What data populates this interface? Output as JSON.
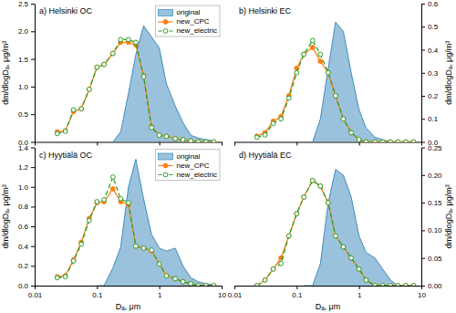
{
  "chart_data": [
    {
      "type": "line",
      "title": "a) Helsinki OC",
      "y_label": "dm/dlogDₐ, μg/m³",
      "log": "x",
      "xlim": [
        0.01,
        10
      ],
      "xticks": [
        0.01,
        0.1,
        1,
        10
      ],
      "ylim": [
        0.0,
        2.5
      ],
      "yticks": [
        {
          "value": 0.0,
          "label": "0.0"
        },
        0.5,
        {
          "value": 1.0,
          "label": "1.0"
        },
        1.5,
        {
          "value": 2.0,
          "label": "2.0"
        },
        2.5
      ],
      "tick_labels": "y",
      "legend": "upper right",
      "series": [
        {
          "name": "original",
          "type": "area",
          "x": [
            0.18,
            0.24,
            0.32,
            0.42,
            0.56,
            0.75,
            1.0,
            1.3,
            1.8,
            2.4,
            3.2,
            4.2,
            5.6,
            7.5
          ],
          "values": [
            0.0,
            0.18,
            0.88,
            1.58,
            2.1,
            1.9,
            1.7,
            1.05,
            0.65,
            0.35,
            0.12,
            0.07,
            0.04,
            0.02
          ]
        },
        {
          "name": "new_CPC",
          "type": "line",
          "marker": "circle",
          "line_style": "solid",
          "x": [
            0.023,
            0.031,
            0.042,
            0.056,
            0.075,
            0.1,
            0.13,
            0.18,
            0.24,
            0.32,
            0.42,
            0.56,
            0.75,
            1.0,
            1.3,
            1.8,
            2.4,
            3.2,
            4.2,
            5.6,
            7.5
          ],
          "values": [
            0.18,
            0.2,
            0.55,
            0.6,
            0.95,
            1.35,
            1.4,
            1.6,
            1.8,
            1.8,
            1.75,
            1.2,
            0.28,
            0.12,
            0.1,
            0.06,
            0.04,
            0.02,
            0.0,
            0.0,
            0.0
          ]
        },
        {
          "name": "new_electric",
          "type": "line",
          "marker": "open-circle",
          "line_style": "dashed",
          "x": [
            0.023,
            0.031,
            0.042,
            0.056,
            0.075,
            0.1,
            0.13,
            0.18,
            0.24,
            0.32,
            0.42,
            0.56,
            0.75,
            1.0,
            1.3,
            1.8,
            2.4,
            3.2,
            4.2,
            5.6,
            7.5
          ],
          "values": [
            0.15,
            0.19,
            0.58,
            0.6,
            0.95,
            1.35,
            1.4,
            1.6,
            1.85,
            1.85,
            1.8,
            1.18,
            0.26,
            0.12,
            0.1,
            0.06,
            0.04,
            0.02,
            0.0,
            0.0,
            0.0
          ]
        }
      ]
    },
    {
      "type": "line",
      "title": "b) Helsinki EC",
      "y_label": "dm/dlogDₐ, μg/m³",
      "log": "x",
      "xlim": [
        0.01,
        10
      ],
      "xticks": [
        0.01,
        0.1,
        1,
        10
      ],
      "ylim": [
        0.0,
        0.6
      ],
      "yticks": [
        {
          "value": 0.0,
          "label": "0.0"
        },
        0.1,
        0.2,
        0.3,
        0.4,
        0.5,
        0.6
      ],
      "tick_labels": "y",
      "series": [
        {
          "name": "original",
          "type": "area",
          "x": [
            0.18,
            0.24,
            0.32,
            0.42,
            0.56,
            0.75,
            1.0,
            1.3,
            1.8,
            2.4,
            3.2,
            4.2,
            5.6,
            7.5
          ],
          "values": [
            0.0,
            0.1,
            0.32,
            0.52,
            0.48,
            0.3,
            0.14,
            0.06,
            0.02,
            0.01,
            0.0,
            0.0,
            0.0,
            0.0
          ]
        },
        {
          "name": "new_CPC",
          "type": "line",
          "marker": "circle",
          "line_style": "solid",
          "x": [
            0.023,
            0.031,
            0.042,
            0.056,
            0.075,
            0.1,
            0.13,
            0.18,
            0.24,
            0.32,
            0.42,
            0.56,
            0.75,
            1.0,
            1.3,
            1.8,
            2.4,
            3.2,
            4.2,
            5.6,
            7.5
          ],
          "values": [
            0.025,
            0.04,
            0.09,
            0.11,
            0.2,
            0.32,
            0.38,
            0.41,
            0.35,
            0.3,
            0.2,
            0.1,
            0.04,
            0.01,
            0.0,
            0.0,
            0.0,
            0.0,
            0.0,
            0.0,
            0.0
          ]
        },
        {
          "name": "new_electric",
          "type": "line",
          "marker": "open-circle",
          "line_style": "dashed",
          "x": [
            0.023,
            0.031,
            0.042,
            0.056,
            0.075,
            0.1,
            0.13,
            0.18,
            0.24,
            0.32,
            0.42,
            0.56,
            0.75,
            1.0,
            1.3,
            1.8,
            2.4,
            3.2,
            4.2,
            5.6,
            7.5
          ],
          "values": [
            0.02,
            0.03,
            0.08,
            0.1,
            0.19,
            0.3,
            0.38,
            0.44,
            0.38,
            0.3,
            0.2,
            0.1,
            0.04,
            0.01,
            0.0,
            0.0,
            0.0,
            0.0,
            0.0,
            0.0,
            0.0
          ]
        }
      ]
    },
    {
      "type": "line",
      "title": "c) Hyytiälä OC",
      "x_label": "Dₐ, μm",
      "y_label": "dm/dlogDₐ, μg/m³",
      "log": "x",
      "xlim": [
        0.01,
        10
      ],
      "xticks": [
        0.01,
        0.1,
        1,
        10
      ],
      "ylim": [
        0.0,
        1.4
      ],
      "yticks": [
        {
          "value": 0.0,
          "label": "0.0"
        },
        0.2,
        0.4,
        0.6,
        0.8,
        {
          "value": 1.0,
          "label": "1.0"
        },
        1.2,
        1.4
      ],
      "legend": "upper right",
      "series": [
        {
          "name": "original",
          "type": "area",
          "x": [
            0.1,
            0.13,
            0.18,
            0.24,
            0.32,
            0.42,
            0.56,
            0.75,
            1.0,
            1.3,
            1.8,
            2.4,
            3.2,
            4.2,
            5.6,
            7.5
          ],
          "values": [
            0.0,
            0.0,
            0.18,
            0.39,
            1.0,
            1.28,
            0.88,
            0.52,
            0.38,
            0.35,
            0.38,
            0.2,
            0.08,
            0.04,
            0.02,
            0.01
          ]
        },
        {
          "name": "new_CPC",
          "type": "line",
          "marker": "circle",
          "line_style": "solid",
          "x": [
            0.023,
            0.031,
            0.042,
            0.056,
            0.075,
            0.1,
            0.13,
            0.18,
            0.24,
            0.32,
            0.42,
            0.56,
            0.75,
            1.0,
            1.3,
            1.8,
            2.4,
            3.2,
            4.2,
            5.6,
            7.5
          ],
          "values": [
            0.09,
            0.1,
            0.26,
            0.44,
            0.68,
            0.84,
            0.85,
            0.98,
            0.85,
            0.82,
            0.4,
            0.38,
            0.35,
            0.22,
            0.1,
            0.07,
            0.04,
            0.02,
            0.0,
            0.0,
            0.0
          ]
        },
        {
          "name": "new_electric",
          "type": "line",
          "marker": "open-circle",
          "line_style": "dashed",
          "x": [
            0.023,
            0.031,
            0.042,
            0.056,
            0.075,
            0.1,
            0.13,
            0.18,
            0.24,
            0.32,
            0.42,
            0.56,
            0.75,
            1.0,
            1.3,
            1.8,
            2.4,
            3.2,
            4.2,
            5.6,
            7.5
          ],
          "values": [
            0.08,
            0.09,
            0.25,
            0.42,
            0.66,
            0.85,
            0.87,
            1.1,
            0.88,
            0.84,
            0.4,
            0.38,
            0.36,
            0.22,
            0.1,
            0.07,
            0.04,
            0.02,
            0.0,
            0.0,
            0.0
          ]
        }
      ]
    },
    {
      "type": "line",
      "title": "d) Hyytiälä EC",
      "x_label": "Dₐ, μm",
      "y_label": "dm/dlogDₐ, μg/m³",
      "log": "x",
      "xlim": [
        0.01,
        10
      ],
      "xticks": [
        0.01,
        0.1,
        1,
        10
      ],
      "ylim": [
        0.0,
        0.25
      ],
      "yticks": [
        {
          "value": 0.0,
          "label": "0.00"
        },
        0.05,
        {
          "value": 0.1,
          "label": "0.10"
        },
        0.15,
        {
          "value": 0.2,
          "label": "0.20"
        },
        0.25
      ],
      "series": [
        {
          "name": "original",
          "type": "area",
          "x": [
            0.13,
            0.18,
            0.24,
            0.32,
            0.42,
            0.56,
            0.75,
            1.0,
            1.3,
            1.8,
            2.4,
            3.2,
            4.2,
            5.6,
            7.5
          ],
          "values": [
            0.0,
            0.0,
            0.04,
            0.15,
            0.21,
            0.2,
            0.16,
            0.09,
            0.06,
            0.05,
            0.03,
            0.01,
            0.0,
            0.0,
            0.0
          ]
        },
        {
          "name": "new_CPC",
          "type": "line",
          "marker": "circle",
          "line_style": "solid",
          "x": [
            0.023,
            0.031,
            0.042,
            0.056,
            0.075,
            0.1,
            0.13,
            0.18,
            0.24,
            0.32,
            0.42,
            0.56,
            0.75,
            1.0,
            1.3,
            1.8,
            2.4,
            3.2,
            4.2,
            5.6,
            7.5
          ],
          "values": [
            0.0,
            0.01,
            0.03,
            0.05,
            0.09,
            0.13,
            0.16,
            0.19,
            0.18,
            0.15,
            0.09,
            0.07,
            0.05,
            0.03,
            0.01,
            0.0,
            0.0,
            0.0,
            0.0,
            0.0,
            0.0
          ]
        },
        {
          "name": "new_electric",
          "type": "line",
          "marker": "open-circle",
          "line_style": "dashed",
          "x": [
            0.023,
            0.031,
            0.042,
            0.056,
            0.075,
            0.1,
            0.13,
            0.18,
            0.24,
            0.32,
            0.42,
            0.56,
            0.75,
            1.0,
            1.3,
            1.8,
            2.4,
            3.2,
            4.2,
            5.6,
            7.5
          ],
          "values": [
            0.0,
            0.01,
            0.03,
            0.04,
            0.09,
            0.13,
            0.16,
            0.19,
            0.18,
            0.15,
            0.09,
            0.07,
            0.05,
            0.03,
            0.01,
            0.0,
            0.0,
            0.0,
            0.0,
            0.0,
            0.0
          ]
        }
      ]
    }
  ]
}
